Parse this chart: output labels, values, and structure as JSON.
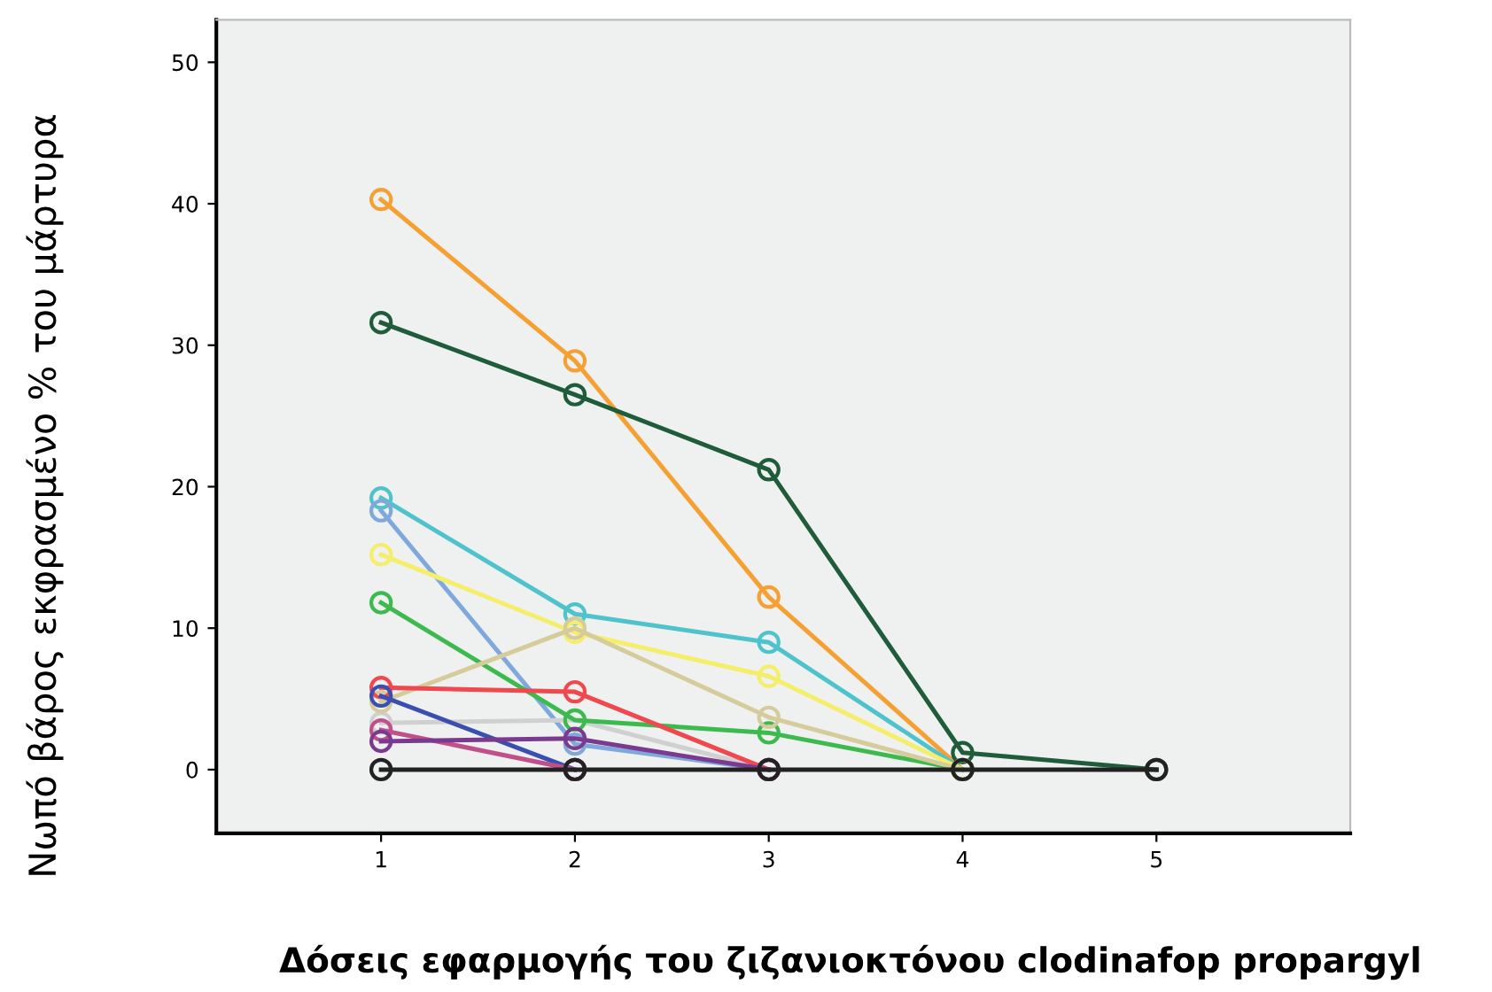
{
  "chart_data": {
    "type": "line",
    "xlabel": "Δόσεις εφαρμογής του ζιζανιοκτόνου clodinafop propargyl",
    "ylabel": "Νωπό βάρος εκφρασμένο % του μάρτυρα",
    "marker": "circle",
    "grid": false,
    "xlim": [
      0.15,
      6.0
    ],
    "xticks": [
      1,
      2,
      3,
      4,
      5
    ],
    "ylim": [
      -4.5,
      53
    ],
    "yticks": [
      0,
      10,
      20,
      30,
      40,
      50
    ],
    "x": [
      1,
      2,
      3,
      4,
      5
    ],
    "series": [
      {
        "color": "#f5a033",
        "values": [
          40.3,
          28.9,
          12.2,
          0,
          null
        ]
      },
      {
        "color": "#1f5c3a",
        "values": [
          31.6,
          26.5,
          21.2,
          1.2,
          0
        ]
      },
      {
        "color": "#4fc3cc",
        "values": [
          19.2,
          11.0,
          9.0,
          0,
          null
        ]
      },
      {
        "color": "#7fa8dc",
        "values": [
          18.3,
          1.8,
          0,
          null,
          null
        ]
      },
      {
        "color": "#f5ee6a",
        "values": [
          15.2,
          9.7,
          6.6,
          0,
          null
        ]
      },
      {
        "color": "#d0d0d0",
        "values": [
          3.3,
          3.5,
          0,
          null,
          null
        ]
      },
      {
        "color": "#3dba4e",
        "values": [
          11.8,
          3.5,
          2.6,
          0,
          null
        ]
      },
      {
        "color": "#d6cb9a",
        "values": [
          4.8,
          10.0,
          3.7,
          0,
          null
        ]
      },
      {
        "color": "#f0484f",
        "values": [
          5.8,
          5.5,
          0,
          null,
          null
        ]
      },
      {
        "color": "#3a4fb0",
        "values": [
          5.2,
          0,
          null,
          null,
          null
        ]
      },
      {
        "color": "#c0508a",
        "values": [
          2.8,
          0,
          null,
          null,
          null
        ]
      },
      {
        "color": "#7a3a90",
        "values": [
          2.0,
          2.2,
          0,
          null,
          null
        ]
      },
      {
        "color": "#222222",
        "values": [
          0,
          0,
          0,
          0,
          0
        ]
      }
    ]
  }
}
